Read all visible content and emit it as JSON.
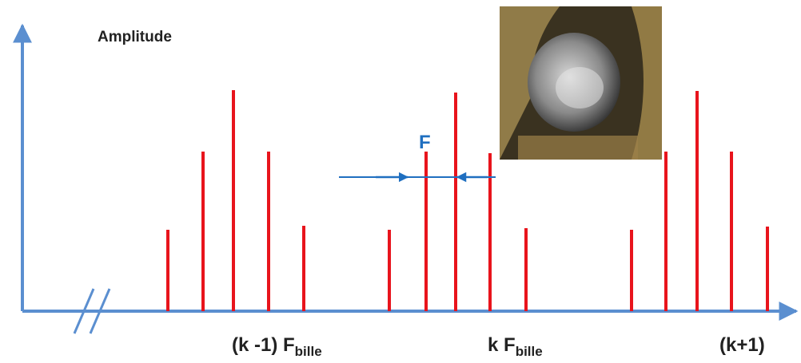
{
  "labels": {
    "amplitude": "Amplitude",
    "delta": "F",
    "left": {
      "main": "(k -1) F",
      "sub": "bille"
    },
    "center": {
      "main": "k F",
      "sub": "bille"
    },
    "right": {
      "main": "(k+1)"
    }
  }
}
